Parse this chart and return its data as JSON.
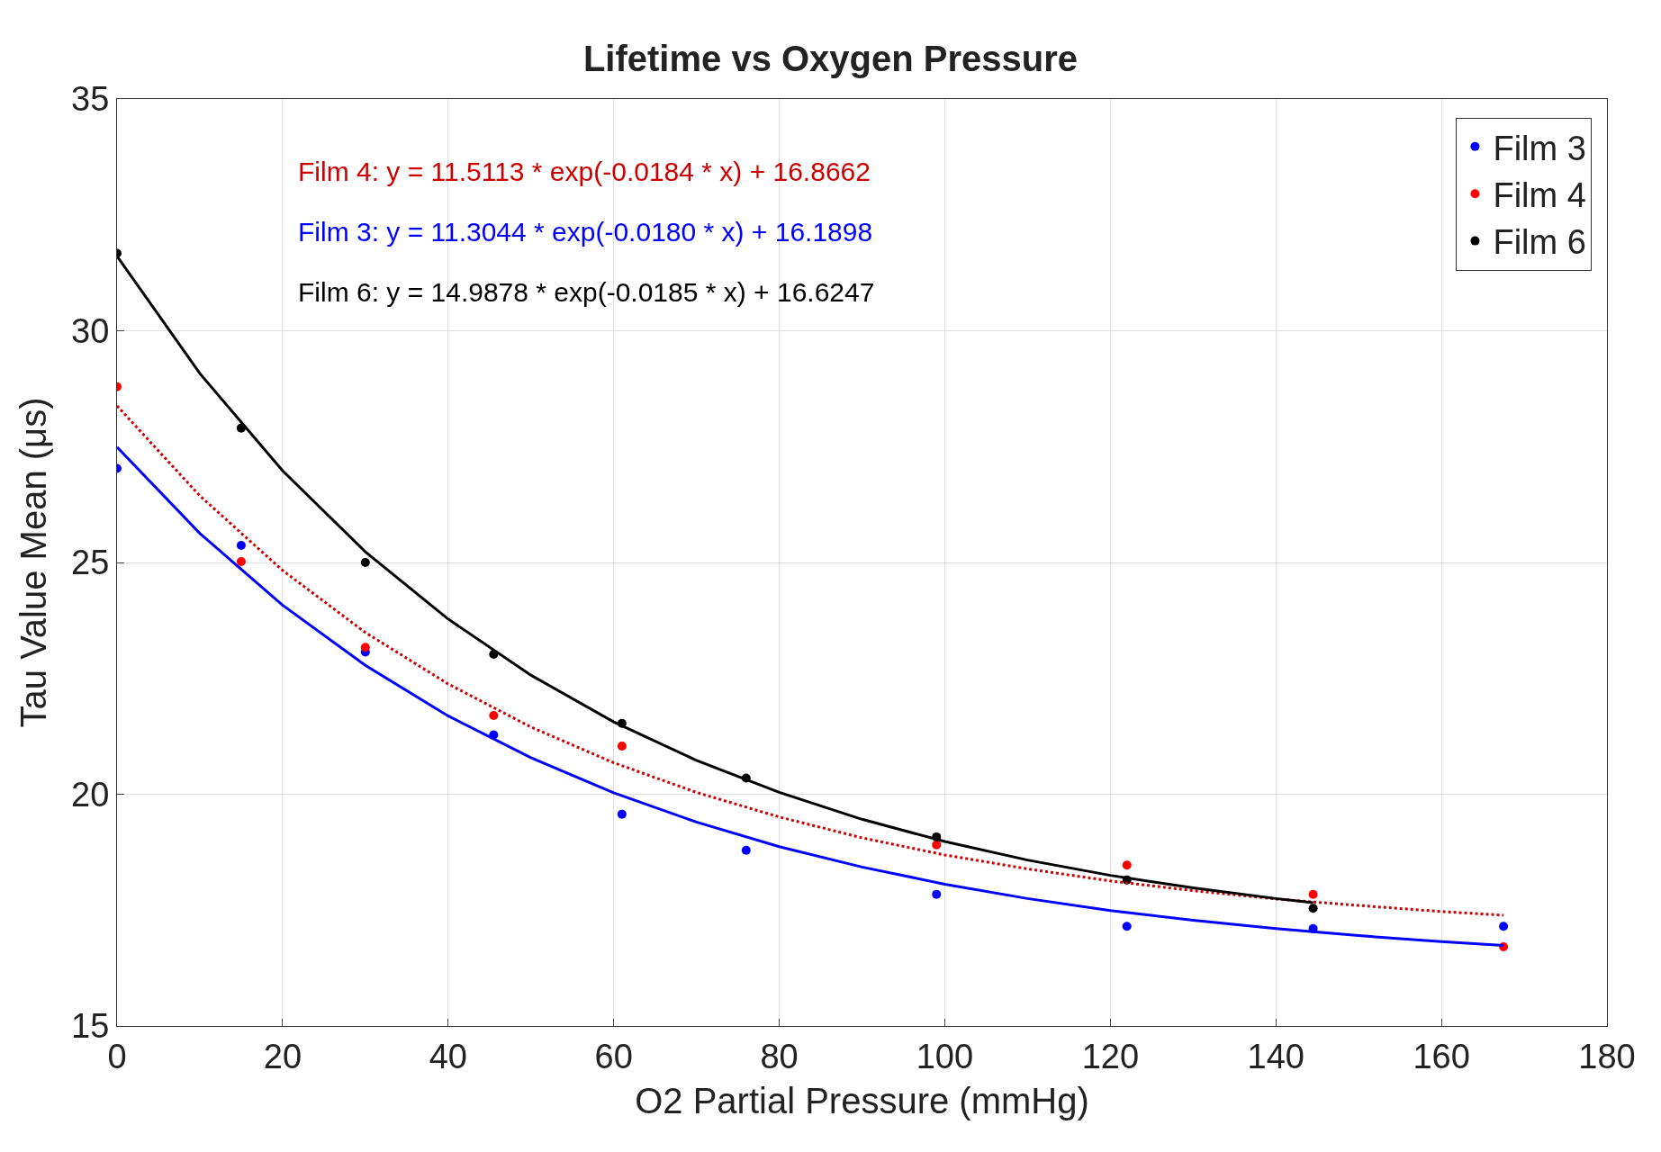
{
  "chart_data": {
    "type": "scatter",
    "title": "Lifetime vs Oxygen Pressure",
    "xlabel": "O2 Partial Pressure (mmHg)",
    "ylabel": "Tau Value Mean (μs)",
    "x": [
      0,
      15,
      30,
      45.5,
      61,
      76,
      99,
      122,
      144.5,
      167.5
    ],
    "series": [
      {
        "name": "Film 3",
        "color": "#0000ff",
        "values": [
          27.03,
          25.37,
          23.07,
          21.28,
          19.57,
          18.79,
          17.84,
          17.15,
          17.1,
          17.15
        ]
      },
      {
        "name": "Film 4",
        "color": "#ff0000",
        "values": [
          28.79,
          25.02,
          23.17,
          21.7,
          21.04,
          null,
          18.91,
          18.47,
          17.84,
          16.71
        ]
      },
      {
        "name": "Film 6",
        "color": "#000000",
        "values": [
          31.67,
          27.9,
          25.0,
          23.02,
          21.53,
          20.35,
          19.08,
          18.15,
          17.54,
          null
        ]
      },
      {
        "type": "line",
        "color": "#cc0000",
        "line_style": "dotted",
        "marker": "none",
        "x": [
          0,
          10,
          20,
          30,
          40,
          50,
          60,
          70,
          80,
          90,
          100,
          110,
          120,
          130,
          140,
          150,
          160,
          167.5
        ],
        "values": [
          28.38,
          26.44,
          24.83,
          23.49,
          22.38,
          21.45,
          20.68,
          20.04,
          19.51,
          19.06,
          18.69,
          18.39,
          18.13,
          17.92,
          17.74,
          17.6,
          17.47,
          17.39
        ]
      },
      {
        "type": "line",
        "color": "#0000ff",
        "line_style": "solid",
        "marker": "none",
        "x": [
          0,
          10,
          20,
          30,
          40,
          50,
          60,
          70,
          80,
          90,
          100,
          110,
          120,
          130,
          140,
          150,
          160,
          167.5
        ],
        "values": [
          27.49,
          25.63,
          24.08,
          22.78,
          21.69,
          20.79,
          20.03,
          19.4,
          18.87,
          18.43,
          18.06,
          17.75,
          17.49,
          17.28,
          17.1,
          16.95,
          16.82,
          16.74
        ]
      },
      {
        "type": "line",
        "color": "#000000",
        "line_style": "solid",
        "marker": "none",
        "x": [
          0,
          10,
          20,
          30,
          40,
          50,
          60,
          70,
          80,
          90,
          100,
          110,
          120,
          130,
          140,
          144.5
        ],
        "values": [
          31.61,
          29.08,
          26.98,
          25.23,
          23.78,
          22.57,
          21.56,
          20.73,
          20.04,
          19.46,
          18.98,
          18.58,
          18.25,
          17.98,
          17.75,
          17.66
        ]
      }
    ],
    "annotations": [
      "Film 4: y = 11.5113 * exp(-0.0184 * x) + 16.8662",
      "Film 3: y = 11.3044 * exp(-0.0180 * x) + 16.1898",
      "Film 6: y = 14.9878 * exp(-0.0185 * x) + 16.6247"
    ],
    "xlim": [
      0,
      180
    ],
    "xticks": [
      0,
      20,
      40,
      60,
      80,
      100,
      120,
      140,
      160,
      180
    ],
    "ylim": [
      15,
      35
    ],
    "yticks": [
      15,
      20,
      25,
      30,
      35
    ],
    "grid": true,
    "legend": "top right",
    "marker": "circle"
  }
}
